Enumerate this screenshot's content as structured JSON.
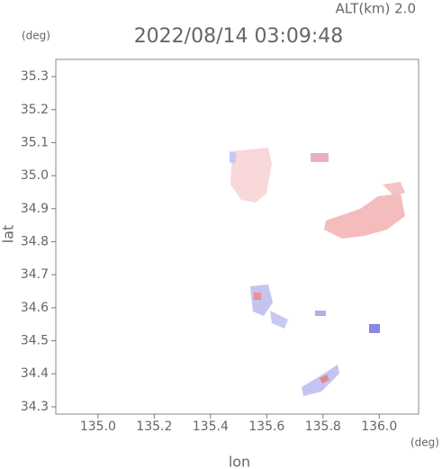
{
  "chart_data": {
    "type": "map",
    "title": "2022/08/14 03:09:48",
    "subtitle": "ALT(km) 2.0",
    "x_label": "lon",
    "y_label": "lat",
    "x_unit": "(deg)",
    "y_unit": "(deg)",
    "xlim": [
      134.85,
      136.14
    ],
    "ylim": [
      34.278,
      35.352
    ],
    "xticks": [
      {
        "value": 135,
        "label": "135.0"
      },
      135.2,
      135.4,
      135.6,
      135.8,
      {
        "value": 136,
        "label": "136.0"
      }
    ],
    "yticks": [
      34.3,
      34.4,
      34.5,
      34.6,
      34.7,
      34.8,
      34.9,
      {
        "value": 35,
        "label": "35.0"
      },
      35.1,
      35.2,
      35.3
    ]
  }
}
